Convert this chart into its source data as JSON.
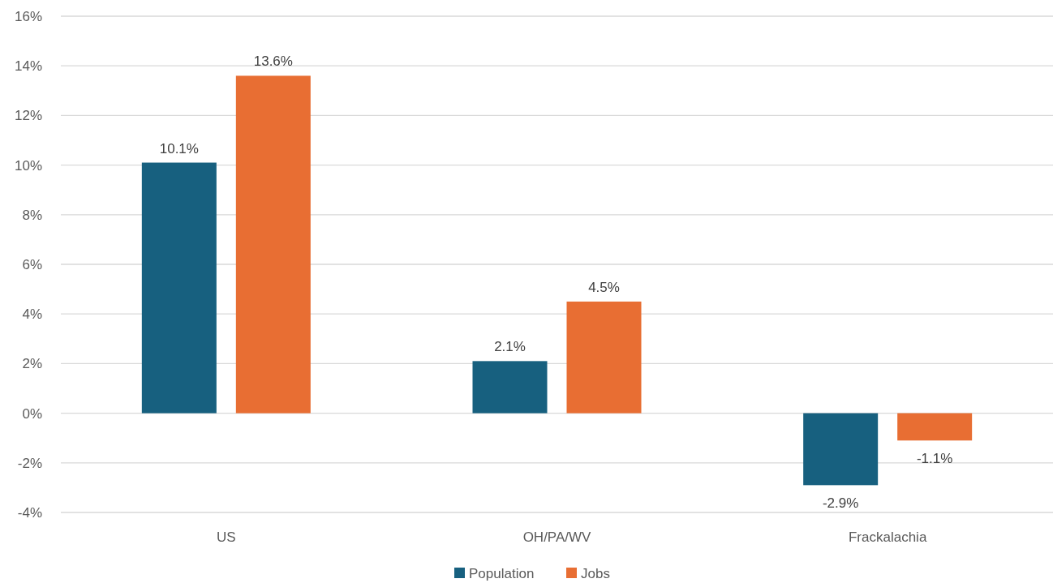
{
  "chart_data": {
    "type": "bar",
    "categories": [
      "US",
      "OH/PA/WV",
      "Frackalachia"
    ],
    "series": [
      {
        "name": "Population",
        "color": "#17607f",
        "values": [
          10.1,
          2.1,
          -2.9
        ],
        "value_labels": [
          "10.1%",
          "2.1%",
          "-2.9%"
        ]
      },
      {
        "name": "Jobs",
        "color": "#e86e33",
        "values": [
          13.6,
          4.5,
          -1.1
        ],
        "value_labels": [
          "13.6%",
          "4.5%",
          "-1.1%"
        ]
      }
    ],
    "ylim": [
      -4,
      16
    ],
    "yticks": [
      {
        "value": -4,
        "label": "-4%"
      },
      {
        "value": -2,
        "label": "-2%"
      },
      {
        "value": 0,
        "label": "0%"
      },
      {
        "value": 2,
        "label": "2%"
      },
      {
        "value": 4,
        "label": "4%"
      },
      {
        "value": 6,
        "label": "6%"
      },
      {
        "value": 8,
        "label": "8%"
      },
      {
        "value": 10,
        "label": "10%"
      },
      {
        "value": 12,
        "label": "12%"
      },
      {
        "value": 14,
        "label": "14%"
      },
      {
        "value": 16,
        "label": "16%"
      }
    ],
    "grid": "y",
    "legend": "bottom"
  }
}
